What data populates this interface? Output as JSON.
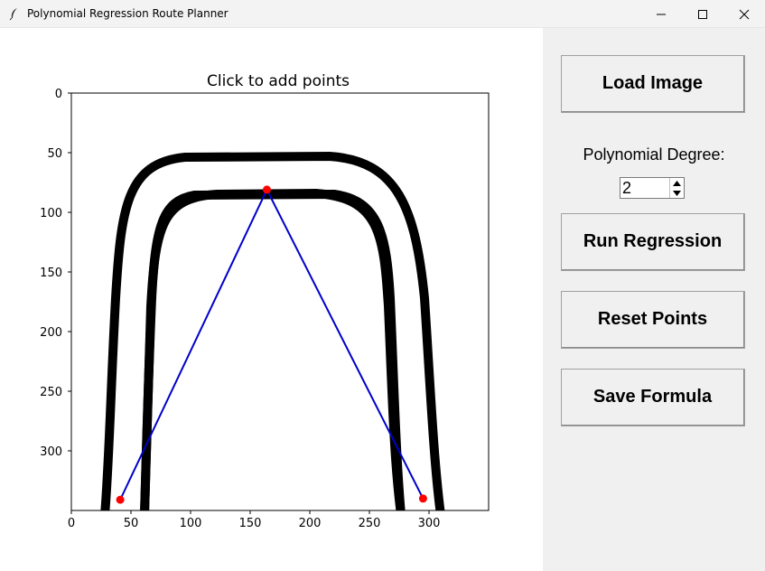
{
  "window": {
    "title": "Polynomial Regression Route Planner"
  },
  "plot": {
    "title": "Click to add points",
    "x_ticks": [
      "0",
      "50",
      "100",
      "150",
      "200",
      "250",
      "300"
    ],
    "y_ticks": [
      "0",
      "50",
      "100",
      "150",
      "200",
      "250",
      "300"
    ],
    "xlim": [
      0,
      350
    ],
    "ylim": [
      350,
      0
    ],
    "points": [
      [
        41,
        341
      ],
      [
        164,
        81
      ],
      [
        295,
        340
      ]
    ],
    "point_color": "#ff0000",
    "line_color": "#0000cc"
  },
  "sidebar": {
    "load_label": "Load Image",
    "degree_label": "Polynomial Degree:",
    "degree_value": "2",
    "run_label": "Run Regression",
    "reset_label": "Reset Points",
    "save_label": "Save Formula"
  },
  "colors": {
    "panel": "#f0f0f0",
    "titlebar": "#f3f3f3"
  }
}
